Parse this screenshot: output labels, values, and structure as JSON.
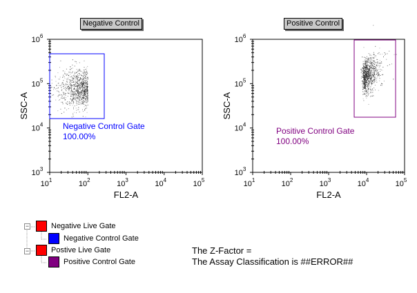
{
  "plots": [
    {
      "title": "Negative Control",
      "x_label": "FL2-A",
      "y_label": "SSC-A",
      "x_ticks": [
        "1",
        "2",
        "3",
        "4",
        "5"
      ],
      "y_ticks": [
        "3",
        "4",
        "5",
        "6"
      ],
      "gate": {
        "name": "Negative Control Gate",
        "percent": "100.00%",
        "color": "#0000ff"
      }
    },
    {
      "title": "Positive Control",
      "x_label": "FL2-A",
      "y_label": "SSC-A",
      "x_ticks": [
        "1",
        "2",
        "3",
        "4",
        "5"
      ],
      "y_ticks": [
        "3",
        "4",
        "5",
        "6"
      ],
      "gate": {
        "name": "Positive Control Gate",
        "percent": "100.00%",
        "color": "#800080"
      }
    }
  ],
  "gate_tree": [
    {
      "label": "Negative Live Gate",
      "color": "#ff0000",
      "level": 0
    },
    {
      "label": "Negative Control Gate",
      "color": "#0000ff",
      "level": 1
    },
    {
      "label": "Postive Live Gate",
      "color": "#ff0000",
      "level": 0
    },
    {
      "label": "Positive Control Gate",
      "color": "#800080",
      "level": 1
    }
  ],
  "stats": {
    "z_factor": "The Z-Factor =",
    "classification": "The Assay Classification is ##ERROR##"
  }
}
